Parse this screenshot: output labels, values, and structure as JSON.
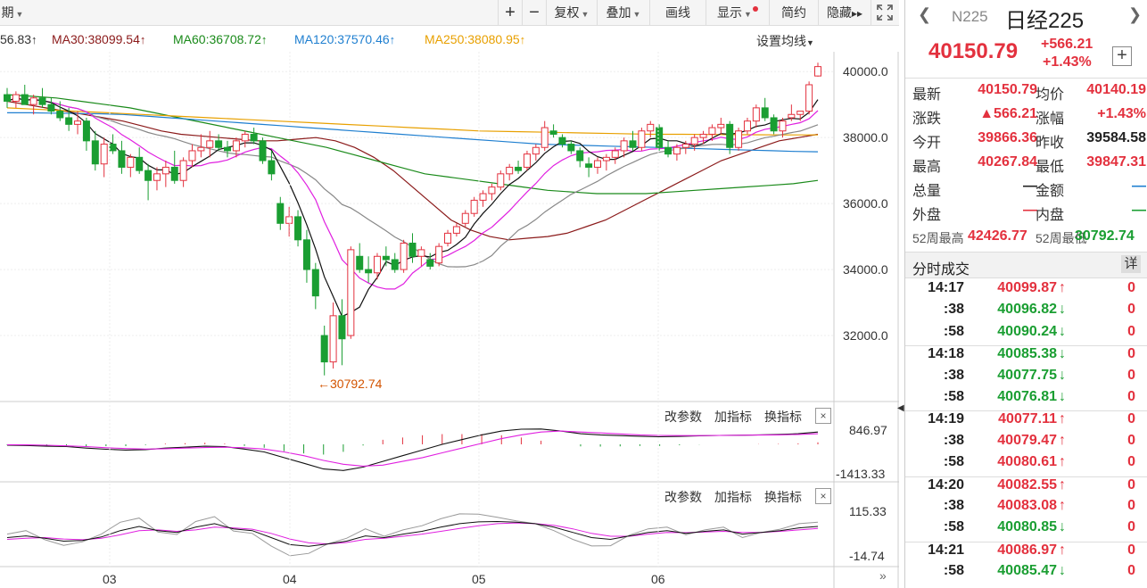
{
  "toolbar": {
    "period_label": "期",
    "plus": "+",
    "minus": "−",
    "restore": "复权",
    "overlay": "叠加",
    "draw_line": "画线",
    "display": "显示",
    "simple": "简约",
    "hide": "隐藏",
    "hide_arrows": "▸▸"
  },
  "ma_legend": {
    "ma_first": "56.83",
    "ma30": "MA30:38099.54",
    "ma60": "MA60:36708.72",
    "ma120": "MA120:37570.46",
    "ma250": "MA250:38080.95",
    "arrow_up": "↑",
    "set_ma": "设置均线"
  },
  "colors": {
    "up": "#e3313e",
    "down": "#1a9e32",
    "ma5": "#111111",
    "ma10": "#e020e0",
    "ma20": "#888888",
    "ma30": "#8b1a1a",
    "ma60": "#1a8a1a",
    "ma120": "#1f7fd0",
    "ma250": "#e8a000"
  },
  "main_axis": {
    "ticks": [
      "40000.0",
      "38000.0",
      "36000.0",
      "34000.0",
      "32000.0"
    ],
    "tick_values": [
      40000,
      38000,
      36000,
      34000,
      32000
    ],
    "min_label": "←30792.74"
  },
  "x_axis": {
    "labels": [
      "03",
      "04",
      "05",
      "06"
    ]
  },
  "subchart1": {
    "buttons": [
      "改参数",
      "加指标",
      "换指标"
    ],
    "close": "×",
    "top": "846.97",
    "bottom": "-1413.33"
  },
  "subchart2": {
    "buttons": [
      "改参数",
      "加指标",
      "换指标"
    ],
    "close": "×",
    "top": "115.33",
    "bottom": "-14.74"
  },
  "panel": {
    "code": "N225",
    "name": "日经225",
    "price": "40150.79",
    "change": "+566.21",
    "change_pct": "+1.43%",
    "add": "+",
    "stats": [
      {
        "l1": "最新",
        "v1": "40150.79",
        "c1": "red",
        "l2": "均价",
        "v2": "40140.19",
        "c2": "red"
      },
      {
        "l1": "涨跌",
        "v1": "▲566.21",
        "c1": "red",
        "l2": "涨幅",
        "v2": "+1.43%",
        "c2": "red"
      },
      {
        "l1": "今开",
        "v1": "39866.36",
        "c1": "red",
        "l2": "昨收",
        "v2": "39584.58",
        "c2": "dark"
      },
      {
        "l1": "最高",
        "v1": "40267.84",
        "c1": "red",
        "l2": "最低",
        "v2": "39847.31",
        "c2": "red"
      },
      {
        "l1": "总量",
        "v1": "—",
        "c1": "dark",
        "l2": "金额",
        "v2": "—",
        "c2": "blue"
      },
      {
        "l1": "外盘",
        "v1": "—",
        "c1": "red",
        "l2": "内盘",
        "v2": "—",
        "c2": "green"
      }
    ],
    "w52_high_label": "52周最高",
    "w52_high": "42426.77",
    "w52_low_label": "52周最低",
    "w52_low": "30792.74",
    "trades_title": "分时成交",
    "detail": "详",
    "trades": [
      {
        "t": "14:17",
        "p": "40099.87",
        "d": "up",
        "v": "0"
      },
      {
        "t": ":38",
        "p": "40096.82",
        "d": "down",
        "v": "0"
      },
      {
        "t": ":58",
        "p": "40090.24",
        "d": "down",
        "v": "0"
      },
      {
        "t": "14:18",
        "p": "40085.38",
        "d": "down",
        "v": "0"
      },
      {
        "t": ":38",
        "p": "40077.75",
        "d": "down",
        "v": "0"
      },
      {
        "t": ":58",
        "p": "40076.81",
        "d": "down",
        "v": "0"
      },
      {
        "t": "14:19",
        "p": "40077.11",
        "d": "up",
        "v": "0"
      },
      {
        "t": ":38",
        "p": "40079.47",
        "d": "up",
        "v": "0"
      },
      {
        "t": ":58",
        "p": "40080.61",
        "d": "up",
        "v": "0"
      },
      {
        "t": "14:20",
        "p": "40082.55",
        "d": "up",
        "v": "0"
      },
      {
        "t": ":38",
        "p": "40083.08",
        "d": "up",
        "v": "0"
      },
      {
        "t": ":58",
        "p": "40080.85",
        "d": "down",
        "v": "0"
      },
      {
        "t": "14:21",
        "p": "40086.97",
        "d": "up",
        "v": "0"
      },
      {
        "t": ":58",
        "p": "40085.47",
        "d": "down",
        "v": "0"
      }
    ]
  },
  "chart_data": {
    "type": "candlestick",
    "y_range": [
      30000,
      40600
    ],
    "x_labels": [
      "03",
      "04",
      "05",
      "06"
    ],
    "candles": [
      {
        "o": 39300,
        "h": 39500,
        "l": 38900,
        "c": 39100
      },
      {
        "o": 39100,
        "h": 39400,
        "l": 38900,
        "c": 39300
      },
      {
        "o": 39300,
        "h": 39600,
        "l": 39000,
        "c": 39000
      },
      {
        "o": 39000,
        "h": 39300,
        "l": 38700,
        "c": 39200
      },
      {
        "o": 39200,
        "h": 39500,
        "l": 38900,
        "c": 39000
      },
      {
        "o": 39000,
        "h": 39200,
        "l": 38700,
        "c": 38800
      },
      {
        "o": 38800,
        "h": 39100,
        "l": 38500,
        "c": 38600
      },
      {
        "o": 38600,
        "h": 38900,
        "l": 38200,
        "c": 38400
      },
      {
        "o": 38400,
        "h": 38800,
        "l": 38100,
        "c": 38500
      },
      {
        "o": 38500,
        "h": 38600,
        "l": 37600,
        "c": 37900
      },
      {
        "o": 37900,
        "h": 38200,
        "l": 37000,
        "c": 37200
      },
      {
        "o": 37200,
        "h": 38000,
        "l": 36800,
        "c": 37800
      },
      {
        "o": 37800,
        "h": 38100,
        "l": 37500,
        "c": 37600
      },
      {
        "o": 37600,
        "h": 37900,
        "l": 36900,
        "c": 37100
      },
      {
        "o": 37100,
        "h": 37500,
        "l": 36800,
        "c": 37400
      },
      {
        "o": 37400,
        "h": 37700,
        "l": 36900,
        "c": 37000
      },
      {
        "o": 37000,
        "h": 37200,
        "l": 36100,
        "c": 36700
      },
      {
        "o": 36700,
        "h": 37100,
        "l": 36400,
        "c": 36900
      },
      {
        "o": 36900,
        "h": 37300,
        "l": 36500,
        "c": 37100
      },
      {
        "o": 37100,
        "h": 37600,
        "l": 36600,
        "c": 36700
      },
      {
        "o": 36700,
        "h": 37400,
        "l": 36500,
        "c": 37300
      },
      {
        "o": 37300,
        "h": 37800,
        "l": 37100,
        "c": 37600
      },
      {
        "o": 37600,
        "h": 38100,
        "l": 37400,
        "c": 37700
      },
      {
        "o": 37700,
        "h": 38200,
        "l": 37400,
        "c": 37900
      },
      {
        "o": 37900,
        "h": 38100,
        "l": 37600,
        "c": 37700
      },
      {
        "o": 37700,
        "h": 37900,
        "l": 37400,
        "c": 37600
      },
      {
        "o": 37600,
        "h": 38000,
        "l": 37400,
        "c": 37900
      },
      {
        "o": 37900,
        "h": 38200,
        "l": 37700,
        "c": 38100
      },
      {
        "o": 38100,
        "h": 38300,
        "l": 37800,
        "c": 37900
      },
      {
        "o": 37900,
        "h": 38000,
        "l": 37200,
        "c": 37300
      },
      {
        "o": 37300,
        "h": 37600,
        "l": 36700,
        "c": 36900
      },
      {
        "o": 36000,
        "h": 36200,
        "l": 35200,
        "c": 35400
      },
      {
        "o": 35400,
        "h": 35900,
        "l": 35000,
        "c": 35600
      },
      {
        "o": 35600,
        "h": 35800,
        "l": 34700,
        "c": 34900
      },
      {
        "o": 34900,
        "h": 35200,
        "l": 33600,
        "c": 34000
      },
      {
        "o": 34000,
        "h": 34200,
        "l": 32800,
        "c": 33200
      },
      {
        "o": 32000,
        "h": 32300,
        "l": 30792,
        "c": 31200
      },
      {
        "o": 31200,
        "h": 33000,
        "l": 31000,
        "c": 32600
      },
      {
        "o": 32600,
        "h": 33100,
        "l": 31100,
        "c": 31900
      },
      {
        "o": 32000,
        "h": 34700,
        "l": 31900,
        "c": 34600
      },
      {
        "o": 34400,
        "h": 34800,
        "l": 33900,
        "c": 34000
      },
      {
        "o": 34000,
        "h": 34400,
        "l": 33600,
        "c": 33900
      },
      {
        "o": 33900,
        "h": 34500,
        "l": 33700,
        "c": 34400
      },
      {
        "o": 34400,
        "h": 34700,
        "l": 34100,
        "c": 34300
      },
      {
        "o": 34300,
        "h": 34500,
        "l": 33900,
        "c": 34000
      },
      {
        "o": 34000,
        "h": 34900,
        "l": 33900,
        "c": 34800
      },
      {
        "o": 34800,
        "h": 35100,
        "l": 34200,
        "c": 34400
      },
      {
        "o": 34400,
        "h": 34700,
        "l": 34100,
        "c": 34600
      },
      {
        "o": 34300,
        "h": 34500,
        "l": 34000,
        "c": 34100
      },
      {
        "o": 34200,
        "h": 34800,
        "l": 34100,
        "c": 34700
      },
      {
        "o": 34800,
        "h": 35200,
        "l": 34700,
        "c": 35100
      },
      {
        "o": 35100,
        "h": 35400,
        "l": 35000,
        "c": 35300
      },
      {
        "o": 35400,
        "h": 35800,
        "l": 35300,
        "c": 35700
      },
      {
        "o": 35700,
        "h": 36200,
        "l": 35600,
        "c": 36100
      },
      {
        "o": 36100,
        "h": 36400,
        "l": 35900,
        "c": 36300
      },
      {
        "o": 36300,
        "h": 36600,
        "l": 36100,
        "c": 36500
      },
      {
        "o": 36500,
        "h": 37000,
        "l": 36400,
        "c": 36900
      },
      {
        "o": 36900,
        "h": 37200,
        "l": 36700,
        "c": 37100
      },
      {
        "o": 37100,
        "h": 37300,
        "l": 36900,
        "c": 37000
      },
      {
        "o": 37100,
        "h": 37600,
        "l": 37000,
        "c": 37500
      },
      {
        "o": 37500,
        "h": 37800,
        "l": 37300,
        "c": 37700
      },
      {
        "o": 37700,
        "h": 38500,
        "l": 37600,
        "c": 38300
      },
      {
        "o": 38200,
        "h": 38400,
        "l": 38000,
        "c": 38100
      },
      {
        "o": 38000,
        "h": 38100,
        "l": 37700,
        "c": 37800
      },
      {
        "o": 37800,
        "h": 37900,
        "l": 37500,
        "c": 37600
      },
      {
        "o": 37600,
        "h": 37700,
        "l": 37100,
        "c": 37300
      },
      {
        "o": 37200,
        "h": 37400,
        "l": 36800,
        "c": 37100
      },
      {
        "o": 37100,
        "h": 37400,
        "l": 36900,
        "c": 37300
      },
      {
        "o": 37300,
        "h": 37500,
        "l": 37000,
        "c": 37400
      },
      {
        "o": 37400,
        "h": 37700,
        "l": 37200,
        "c": 37600
      },
      {
        "o": 37600,
        "h": 38000,
        "l": 37400,
        "c": 37900
      },
      {
        "o": 37900,
        "h": 38200,
        "l": 37600,
        "c": 37700
      },
      {
        "o": 37700,
        "h": 38300,
        "l": 37600,
        "c": 38200
      },
      {
        "o": 38200,
        "h": 38500,
        "l": 38000,
        "c": 38400
      },
      {
        "o": 38300,
        "h": 38400,
        "l": 37600,
        "c": 37700
      },
      {
        "o": 37700,
        "h": 37900,
        "l": 37400,
        "c": 37500
      },
      {
        "o": 37500,
        "h": 37800,
        "l": 37300,
        "c": 37700
      },
      {
        "o": 37700,
        "h": 37900,
        "l": 37500,
        "c": 37800
      },
      {
        "o": 37800,
        "h": 38100,
        "l": 37600,
        "c": 38000
      },
      {
        "o": 38000,
        "h": 38200,
        "l": 37800,
        "c": 38100
      },
      {
        "o": 38100,
        "h": 38400,
        "l": 37900,
        "c": 38300
      },
      {
        "o": 38300,
        "h": 38600,
        "l": 38100,
        "c": 38400
      },
      {
        "o": 38400,
        "h": 38500,
        "l": 37500,
        "c": 37700
      },
      {
        "o": 37700,
        "h": 38300,
        "l": 37600,
        "c": 38200
      },
      {
        "o": 38200,
        "h": 38600,
        "l": 38100,
        "c": 38500
      },
      {
        "o": 38500,
        "h": 39000,
        "l": 38300,
        "c": 38900
      },
      {
        "o": 38900,
        "h": 39200,
        "l": 38500,
        "c": 38600
      },
      {
        "o": 38600,
        "h": 38700,
        "l": 38100,
        "c": 38200
      },
      {
        "o": 38200,
        "h": 38600,
        "l": 38000,
        "c": 38500
      },
      {
        "o": 38600,
        "h": 39000,
        "l": 38500,
        "c": 38700
      },
      {
        "o": 38700,
        "h": 38800,
        "l": 38500,
        "c": 38800
      },
      {
        "o": 38800,
        "h": 39700,
        "l": 38700,
        "c": 39600
      },
      {
        "o": 39866,
        "h": 40268,
        "l": 39847,
        "c": 40150
      }
    ],
    "ma_series": [
      {
        "name": "MA30",
        "color": "#8b1a1a",
        "values": [
          39100,
          39000,
          38900,
          38800,
          38700,
          38600,
          38500,
          38350,
          38200,
          38100,
          38050,
          38000,
          37950,
          37900,
          37900,
          37950,
          38000,
          37900,
          37700,
          37400,
          37000,
          36500,
          36000,
          35500,
          35200,
          35000,
          34900,
          34950,
          35000,
          35100,
          35300,
          35500,
          35800,
          36100,
          36400,
          36700,
          37000,
          37300,
          37500,
          37700,
          37900,
          38000,
          38100
        ]
      },
      {
        "name": "MA60",
        "color": "#1a8a1a",
        "values": [
          39300,
          39250,
          39200,
          39100,
          39000,
          38900,
          38750,
          38600,
          38450,
          38300,
          38150,
          38000,
          37850,
          37700,
          37500,
          37300,
          37100,
          36900,
          36800,
          36700,
          36600,
          36500,
          36400,
          36350,
          36300,
          36300,
          36300,
          36350,
          36400,
          36450,
          36500,
          36550,
          36600,
          36700
        ]
      },
      {
        "name": "MA120",
        "color": "#1f7fd0",
        "values": [
          38750,
          38750,
          38740,
          38730,
          38720,
          38700,
          38650,
          38600,
          38550,
          38500,
          38450,
          38400,
          38350,
          38300,
          38250,
          38200,
          38150,
          38100,
          38050,
          38000,
          37950,
          37900,
          37850,
          37800,
          37780,
          37760,
          37740,
          37720,
          37700,
          37680,
          37660,
          37640,
          37620,
          37600,
          37580,
          37570
        ]
      },
      {
        "name": "MA250",
        "color": "#e8a000",
        "values": [
          38900,
          38850,
          38800,
          38750,
          38700,
          38650,
          38600,
          38550,
          38500,
          38450,
          38400,
          38350,
          38300,
          38250,
          38200,
          38180,
          38160,
          38140,
          38120,
          38100,
          38100,
          38090,
          38085,
          38080,
          38080
        ]
      }
    ],
    "subchart1": {
      "y_range": [
        -1413.33,
        846.97
      ],
      "dif": [
        -50,
        -60,
        -100,
        -120,
        -200,
        -260,
        -300,
        -280,
        -200,
        -150,
        -100,
        -120,
        -250,
        -400,
        -700,
        -1000,
        -1300,
        -1380,
        -1200,
        -900,
        -600,
        -300,
        0,
        250,
        500,
        700,
        800,
        810,
        700,
        560,
        500,
        460,
        430,
        400,
        420,
        450,
        470,
        480,
        500,
        520,
        560,
        650
      ],
      "dea": [
        -20,
        -30,
        -50,
        -80,
        -120,
        -180,
        -220,
        -250,
        -230,
        -200,
        -170,
        -150,
        -180,
        -250,
        -400,
        -600,
        -850,
        -1050,
        -1150,
        -1100,
        -900,
        -700,
        -450,
        -200,
        50,
        300,
        500,
        650,
        700,
        650,
        600,
        550,
        500,
        470,
        460,
        460,
        470,
        480,
        490,
        500,
        520,
        560
      ]
    },
    "subchart2": {
      "y_range": [
        -14.74,
        115.33
      ],
      "k": [
        40,
        45,
        38,
        30,
        32,
        42,
        60,
        72,
        60,
        55,
        70,
        80,
        65,
        60,
        40,
        20,
        15,
        22,
        30,
        45,
        40,
        50,
        58,
        70,
        80,
        85,
        86,
        84,
        80,
        70,
        55,
        40,
        35,
        45,
        55,
        60,
        52,
        58,
        62,
        50,
        55,
        60,
        68,
        72
      ],
      "d": [
        35,
        38,
        40,
        36,
        34,
        38,
        48,
        60,
        62,
        58,
        62,
        70,
        68,
        64,
        52,
        36,
        25,
        22,
        26,
        35,
        38,
        44,
        50,
        58,
        66,
        74,
        80,
        82,
        80,
        75,
        65,
        52,
        44,
        44,
        50,
        55,
        54,
        56,
        58,
        55,
        55,
        58,
        62,
        66
      ],
      "j": [
        50,
        60,
        34,
        18,
        28,
        50,
        84,
        96,
        56,
        49,
        86,
        100,
        59,
        52,
        16,
        -12,
        -5,
        22,
        38,
        65,
        44,
        62,
        74,
        94,
        108,
        107,
        98,
        88,
        80,
        60,
        35,
        16,
        17,
        47,
        65,
        70,
        48,
        62,
        70,
        40,
        55,
        64,
        80,
        84
      ]
    }
  }
}
